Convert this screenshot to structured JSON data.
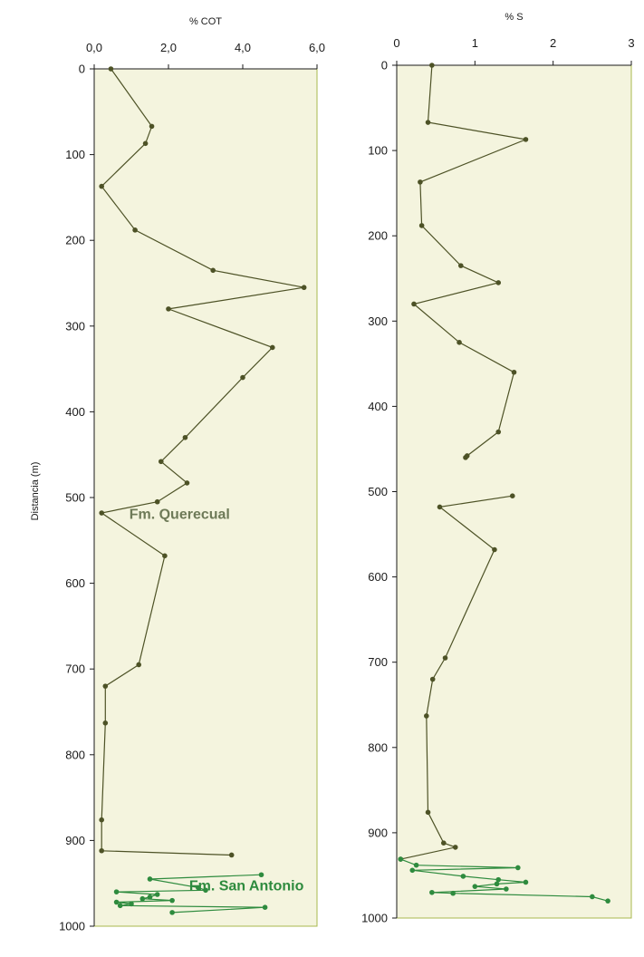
{
  "colors": {
    "plot_background": "#f4f4de",
    "frame": "#a8b84e",
    "axis": "#1a1a1a",
    "querecual_series": "#4d5226",
    "san_antonio_series": "#2e8b3e",
    "querecual_label": "#6e7a58",
    "san_antonio_label": "#2e8b3e"
  },
  "y_axis_label": "Distancia (m)",
  "chart_data": [
    {
      "type": "line",
      "title": "% COT",
      "xlim": [
        0,
        6
      ],
      "ylim": [
        1000,
        0
      ],
      "x_ticks": [
        "0,0",
        "2,0",
        "4,0",
        "6,0"
      ],
      "x_tick_values": [
        0,
        2,
        4,
        6
      ],
      "y_ticks": [
        "0",
        "100",
        "200",
        "300",
        "400",
        "500",
        "600",
        "700",
        "800",
        "900",
        "1000"
      ],
      "y_tick_values": [
        0,
        100,
        200,
        300,
        400,
        500,
        600,
        700,
        800,
        900,
        1000
      ],
      "ylabel": "Distancia (m)",
      "grid": false,
      "annotations": [
        {
          "text": "Fm. Querecual",
          "x": 2.3,
          "y": 525,
          "color": "querecual_label"
        },
        {
          "text": "Fm. San Antonio",
          "x": 4.1,
          "y": 958,
          "color": "san_antonio_label"
        }
      ],
      "series": [
        {
          "color": "querecual_series",
          "points": [
            [
              0.45,
              0
            ],
            [
              1.55,
              67
            ],
            [
              1.38,
              87
            ],
            [
              0.2,
              137
            ],
            [
              1.1,
              188
            ],
            [
              3.2,
              235
            ],
            [
              5.65,
              255
            ],
            [
              2.0,
              280
            ],
            [
              4.8,
              325
            ],
            [
              4.0,
              360
            ],
            [
              2.45,
              430
            ],
            [
              1.8,
              458
            ],
            [
              2.5,
              483
            ],
            [
              1.7,
              505
            ],
            [
              0.2,
              518
            ],
            [
              1.9,
              568
            ],
            [
              1.2,
              695
            ],
            [
              0.3,
              720
            ],
            [
              0.3,
              763
            ],
            [
              0.2,
              876
            ],
            [
              0.2,
              912
            ],
            [
              3.7,
              917
            ]
          ]
        },
        {
          "color": "san_antonio_series",
          "points": [
            [
              4.5,
              940
            ],
            [
              1.5,
              945
            ],
            [
              2.8,
              955
            ],
            [
              3.0,
              958
            ],
            [
              0.6,
              960
            ],
            [
              1.7,
              963
            ],
            [
              1.5,
              966
            ],
            [
              1.3,
              968
            ],
            [
              2.1,
              970
            ],
            [
              0.6,
              972
            ],
            [
              1.0,
              974
            ],
            [
              0.7,
              976
            ],
            [
              4.6,
              978
            ],
            [
              2.1,
              984
            ]
          ]
        }
      ]
    },
    {
      "type": "line",
      "title": "% S",
      "xlim": [
        0,
        3
      ],
      "ylim": [
        1000,
        0
      ],
      "x_ticks": [
        "0",
        "1",
        "2",
        "3"
      ],
      "x_tick_values": [
        0,
        1,
        2,
        3
      ],
      "y_ticks": [
        "0",
        "100",
        "200",
        "300",
        "400",
        "500",
        "600",
        "700",
        "800",
        "900",
        "1000"
      ],
      "y_tick_values": [
        0,
        100,
        200,
        300,
        400,
        500,
        600,
        700,
        800,
        900,
        1000
      ],
      "grid": false,
      "series": [
        {
          "color": "querecual_series",
          "segments": [
            [
              [
                0.45,
                0
              ],
              [
                0.4,
                67
              ],
              [
                1.65,
                87
              ],
              [
                0.3,
                137
              ],
              [
                0.32,
                188
              ],
              [
                0.82,
                235
              ],
              [
                1.3,
                255
              ],
              [
                0.22,
                280
              ],
              [
                0.8,
                325
              ],
              [
                1.5,
                360
              ],
              [
                1.3,
                430
              ],
              [
                0.9,
                458
              ],
              [
                0.88,
                460
              ]
            ],
            [
              [
                1.48,
                505
              ],
              [
                0.55,
                518
              ],
              [
                1.25,
                568
              ],
              [
                0.62,
                695
              ],
              [
                0.46,
                720
              ],
              [
                0.38,
                763
              ],
              [
                0.4,
                876
              ],
              [
                0.6,
                912
              ],
              [
                0.75,
                917
              ],
              [
                0.05,
                931
              ]
            ]
          ]
        },
        {
          "color": "san_antonio_series",
          "points": [
            [
              0.05,
              931
            ],
            [
              0.25,
              938
            ],
            [
              1.55,
              941
            ],
            [
              0.2,
              944
            ],
            [
              0.85,
              951
            ],
            [
              1.3,
              955
            ],
            [
              1.65,
              958
            ],
            [
              1.28,
              960
            ],
            [
              1.0,
              963
            ],
            [
              1.4,
              966
            ],
            [
              0.45,
              970
            ],
            [
              0.72,
              971
            ],
            [
              2.5,
              975
            ],
            [
              2.7,
              980
            ]
          ]
        }
      ]
    }
  ]
}
